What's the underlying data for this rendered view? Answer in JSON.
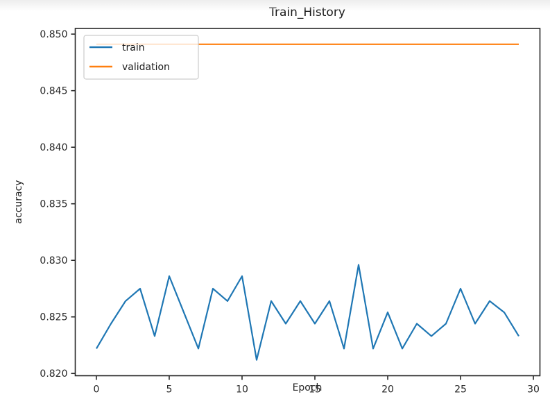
{
  "chart_data": {
    "type": "line",
    "title": "Train_History",
    "xlabel": "Epoch",
    "ylabel": "accuracy",
    "x": [
      0,
      1,
      2,
      3,
      4,
      5,
      6,
      7,
      8,
      9,
      10,
      11,
      12,
      13,
      14,
      15,
      16,
      17,
      18,
      19,
      20,
      21,
      22,
      23,
      24,
      25,
      26,
      27,
      28,
      29
    ],
    "series": [
      {
        "name": "train",
        "color": "#1f77b4",
        "values": [
          0.8222,
          0.8244,
          0.8264,
          0.8275,
          0.8233,
          0.8286,
          0.8254,
          0.8222,
          0.8275,
          0.8264,
          0.8286,
          0.8212,
          0.8264,
          0.8244,
          0.8264,
          0.8244,
          0.8264,
          0.8222,
          0.8296,
          0.8222,
          0.8254,
          0.8222,
          0.8244,
          0.8233,
          0.8244,
          0.8275,
          0.8244,
          0.8264,
          0.8254,
          0.8233
        ]
      },
      {
        "name": "validation",
        "color": "#ff7f0e",
        "values": [
          0.8491,
          0.8491,
          0.8491,
          0.8491,
          0.8491,
          0.8491,
          0.8491,
          0.8491,
          0.8491,
          0.8491,
          0.8491,
          0.8491,
          0.8491,
          0.8491,
          0.8491,
          0.8491,
          0.8491,
          0.8491,
          0.8491,
          0.8491,
          0.8491,
          0.8491,
          0.8491,
          0.8491,
          0.8491,
          0.8491,
          0.8491,
          0.8491,
          0.8491,
          0.8491
        ]
      }
    ],
    "xlim": [
      -1.45,
      30.45
    ],
    "ylim": [
      0.8198,
      0.8505
    ],
    "xticks": [
      0,
      5,
      10,
      15,
      20,
      25,
      30
    ],
    "yticks": [
      0.82,
      0.825,
      0.83,
      0.835,
      0.84,
      0.845,
      0.85
    ],
    "ytick_labels": [
      "0.820",
      "0.825",
      "0.830",
      "0.835",
      "0.840",
      "0.845",
      "0.850"
    ],
    "grid": false,
    "legend": {
      "location": "upper left",
      "entries": [
        "train",
        "validation"
      ]
    },
    "style": {
      "axis_color": "#262626",
      "legend_border_color": "#cccccc",
      "legend_fill": "#ffffff",
      "legend_fill_opacity": 0.8
    }
  }
}
